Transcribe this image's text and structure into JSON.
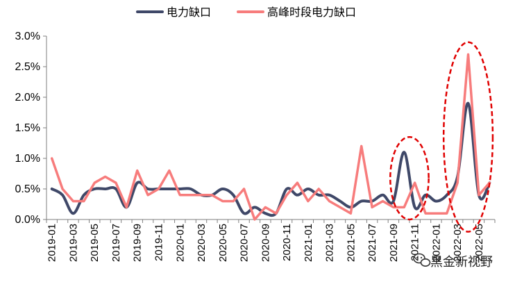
{
  "chart_data": {
    "type": "line",
    "title": "",
    "xlabel": "",
    "ylabel": "",
    "ylim": [
      0,
      3.0
    ],
    "y_ticks": [
      0,
      0.5,
      1.0,
      1.5,
      2.0,
      2.5,
      3.0
    ],
    "y_tick_labels": [
      "0.0%",
      "0.5%",
      "1.0%",
      "1.5%",
      "2.0%",
      "2.5%",
      "3.0%"
    ],
    "legend_position": "top-center",
    "categories": [
      "2019-01",
      "2019-02",
      "2019-03",
      "2019-04",
      "2019-05",
      "2019-06",
      "2019-07",
      "2019-08",
      "2019-09",
      "2019-10",
      "2019-11",
      "2019-12",
      "2020-01",
      "2020-02",
      "2020-03",
      "2020-04",
      "2020-05",
      "2020-06",
      "2020-07",
      "2020-08",
      "2020-09",
      "2020-10",
      "2020-11",
      "2020-12",
      "2021-01",
      "2021-02",
      "2021-03",
      "2021-04",
      "2021-05",
      "2021-06",
      "2021-07",
      "2021-08",
      "2021-09",
      "2021-10",
      "2021-11",
      "2021-12",
      "2022-01",
      "2022-02",
      "2022-03",
      "2022-04",
      "2022-05",
      "2022-06"
    ],
    "x_tick_labels": [
      "2019-01",
      "2019-03",
      "2019-05",
      "2019-07",
      "2019-09",
      "2019-11",
      "2020-01",
      "2020-03",
      "2020-05",
      "2020-07",
      "2020-09",
      "2020-11",
      "2021-01",
      "2021-03",
      "2021-05",
      "2021-07",
      "2021-09",
      "2021-11",
      "2022-01",
      "2022-03",
      "2022-05"
    ],
    "series": [
      {
        "name": "电力缺口",
        "color": "#3f4868",
        "smooth": true,
        "values": [
          0.5,
          0.4,
          0.1,
          0.4,
          0.5,
          0.5,
          0.5,
          0.2,
          0.6,
          0.5,
          0.5,
          0.5,
          0.5,
          0.5,
          0.4,
          0.4,
          0.5,
          0.4,
          0.1,
          0.2,
          0.1,
          0.1,
          0.5,
          0.4,
          0.5,
          0.4,
          0.4,
          0.3,
          0.2,
          0.3,
          0.3,
          0.4,
          0.3,
          1.1,
          0.2,
          0.4,
          0.3,
          0.4,
          0.7,
          1.9,
          0.4,
          0.6
        ]
      },
      {
        "name": "高峰时段电力缺口",
        "color": "#f77c7c",
        "smooth": false,
        "values": [
          1.0,
          0.5,
          0.3,
          0.3,
          0.6,
          0.7,
          0.6,
          0.2,
          0.8,
          0.4,
          0.5,
          0.8,
          0.4,
          0.4,
          0.4,
          0.4,
          0.3,
          0.3,
          0.5,
          0.0,
          0.2,
          0.1,
          0.4,
          0.6,
          0.3,
          0.5,
          0.3,
          0.2,
          0.1,
          1.2,
          0.2,
          0.3,
          0.2,
          0.2,
          0.6,
          0.1,
          0.1,
          0.1,
          0.6,
          2.7,
          0.4,
          0.6
        ]
      }
    ],
    "annotations": [
      {
        "type": "dashed-ellipse",
        "color": "#e00000",
        "x_from": "2021-09",
        "x_to": "2021-12",
        "y_from": 0.0,
        "y_to": 1.35
      },
      {
        "type": "dashed-ellipse",
        "color": "#e00000",
        "x_from": "2022-02",
        "x_to": "2022-06",
        "y_from": -0.2,
        "y_to": 2.9
      }
    ]
  },
  "watermark": {
    "text": "黑金新视野",
    "icon": "wechat-icon"
  }
}
